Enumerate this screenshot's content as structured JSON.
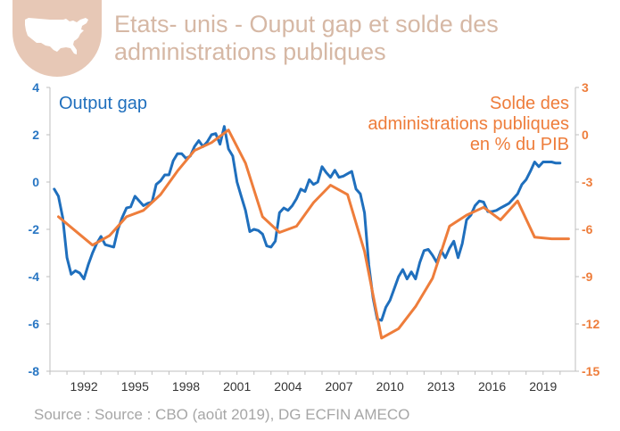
{
  "header": {
    "title_line1": "Etats- unis - Ouput gap et solde des",
    "title_line2": "administrations publiques",
    "badge_icon": "usa-map-icon"
  },
  "footer": {
    "source": "Source : Source : CBO (août 2019), DG ECFIN AMECO"
  },
  "colors": {
    "blue": "#1f6fbd",
    "orange": "#ee7d3b",
    "title": "#d6b8a5",
    "badge": "#e7c8b6"
  },
  "chart_data": {
    "type": "line",
    "title": "Etats- unis - Ouput gap et solde des administrations publiques",
    "xlim": [
      1990.0,
      2020.9
    ],
    "x_ticks": [
      1992,
      1995,
      1998,
      2001,
      2004,
      2007,
      2010,
      2013,
      2016,
      2019
    ],
    "y_left": {
      "lim": [
        -8,
        4
      ],
      "ticks": [
        -8,
        -6,
        -4,
        -2,
        0,
        2,
        4
      ]
    },
    "y_right": {
      "lim": [
        -15,
        3
      ],
      "ticks": [
        -15,
        -12,
        -9,
        -6,
        -3,
        0,
        3
      ]
    },
    "series": [
      {
        "name": "Output gap",
        "label_lines": [
          "Output gap"
        ],
        "axis": "left",
        "color": "#1f6fbd",
        "points": [
          [
            1990.25,
            -0.3
          ],
          [
            1990.5,
            -0.6
          ],
          [
            1990.75,
            -1.5
          ],
          [
            1991.0,
            -3.2
          ],
          [
            1991.25,
            -3.9
          ],
          [
            1991.5,
            -3.75
          ],
          [
            1991.75,
            -3.85
          ],
          [
            1992.0,
            -4.1
          ],
          [
            1992.25,
            -3.5
          ],
          [
            1992.5,
            -3.0
          ],
          [
            1992.75,
            -2.6
          ],
          [
            1993.0,
            -2.3
          ],
          [
            1993.25,
            -2.65
          ],
          [
            1993.5,
            -2.7
          ],
          [
            1993.75,
            -2.75
          ],
          [
            1994.0,
            -2.0
          ],
          [
            1994.25,
            -1.5
          ],
          [
            1994.5,
            -1.1
          ],
          [
            1994.75,
            -1.05
          ],
          [
            1995.0,
            -0.6
          ],
          [
            1995.25,
            -0.8
          ],
          [
            1995.5,
            -1.0
          ],
          [
            1995.75,
            -0.9
          ],
          [
            1996.0,
            -0.85
          ],
          [
            1996.25,
            -0.1
          ],
          [
            1996.5,
            0.05
          ],
          [
            1996.75,
            0.3
          ],
          [
            1997.0,
            0.3
          ],
          [
            1997.25,
            0.9
          ],
          [
            1997.5,
            1.2
          ],
          [
            1997.75,
            1.2
          ],
          [
            1998.0,
            1.0
          ],
          [
            1998.25,
            1.1
          ],
          [
            1998.5,
            1.5
          ],
          [
            1998.75,
            1.75
          ],
          [
            1999.0,
            1.5
          ],
          [
            1999.25,
            1.7
          ],
          [
            1999.5,
            2.0
          ],
          [
            1999.75,
            2.05
          ],
          [
            2000.0,
            1.6
          ],
          [
            2000.25,
            2.35
          ],
          [
            2000.5,
            1.4
          ],
          [
            2000.75,
            1.1
          ],
          [
            2001.0,
            0.0
          ],
          [
            2001.25,
            -0.6
          ],
          [
            2001.5,
            -1.2
          ],
          [
            2001.75,
            -2.1
          ],
          [
            2002.0,
            -2.0
          ],
          [
            2002.25,
            -2.05
          ],
          [
            2002.5,
            -2.2
          ],
          [
            2002.75,
            -2.7
          ],
          [
            2003.0,
            -2.75
          ],
          [
            2003.25,
            -2.5
          ],
          [
            2003.5,
            -1.3
          ],
          [
            2003.75,
            -1.1
          ],
          [
            2004.0,
            -1.2
          ],
          [
            2004.25,
            -1.0
          ],
          [
            2004.5,
            -0.7
          ],
          [
            2004.75,
            -0.3
          ],
          [
            2005.0,
            -0.4
          ],
          [
            2005.25,
            0.1
          ],
          [
            2005.5,
            -0.1
          ],
          [
            2005.75,
            0.0
          ],
          [
            2006.0,
            0.65
          ],
          [
            2006.25,
            0.4
          ],
          [
            2006.5,
            0.2
          ],
          [
            2006.75,
            0.5
          ],
          [
            2007.0,
            0.2
          ],
          [
            2007.25,
            0.25
          ],
          [
            2007.5,
            0.35
          ],
          [
            2007.75,
            0.45
          ],
          [
            2008.0,
            -0.3
          ],
          [
            2008.25,
            -0.5
          ],
          [
            2008.5,
            -1.3
          ],
          [
            2008.75,
            -3.5
          ],
          [
            2009.0,
            -4.9
          ],
          [
            2009.25,
            -5.8
          ],
          [
            2009.5,
            -5.85
          ],
          [
            2009.75,
            -5.3
          ],
          [
            2010.0,
            -5.0
          ],
          [
            2010.25,
            -4.5
          ],
          [
            2010.5,
            -4.0
          ],
          [
            2010.75,
            -3.7
          ],
          [
            2011.0,
            -4.1
          ],
          [
            2011.25,
            -3.8
          ],
          [
            2011.5,
            -4.1
          ],
          [
            2011.75,
            -3.4
          ],
          [
            2012.0,
            -2.9
          ],
          [
            2012.25,
            -2.85
          ],
          [
            2012.5,
            -3.1
          ],
          [
            2012.75,
            -3.4
          ],
          [
            2013.0,
            -2.9
          ],
          [
            2013.25,
            -3.2
          ],
          [
            2013.5,
            -2.8
          ],
          [
            2013.75,
            -2.5
          ],
          [
            2014.0,
            -3.2
          ],
          [
            2014.25,
            -2.6
          ],
          [
            2014.5,
            -1.6
          ],
          [
            2014.75,
            -1.4
          ],
          [
            2015.0,
            -1.0
          ],
          [
            2015.25,
            -0.8
          ],
          [
            2015.5,
            -0.85
          ],
          [
            2015.75,
            -1.25
          ],
          [
            2016.0,
            -1.25
          ],
          [
            2016.25,
            -1.2
          ],
          [
            2016.5,
            -1.1
          ],
          [
            2016.75,
            -1.0
          ],
          [
            2017.0,
            -0.9
          ],
          [
            2017.25,
            -0.7
          ],
          [
            2017.5,
            -0.5
          ],
          [
            2017.75,
            -0.1
          ],
          [
            2018.0,
            0.1
          ],
          [
            2018.25,
            0.45
          ],
          [
            2018.5,
            0.85
          ],
          [
            2018.75,
            0.65
          ],
          [
            2019.0,
            0.85
          ],
          [
            2019.25,
            0.85
          ],
          [
            2019.5,
            0.85
          ],
          [
            2019.75,
            0.8
          ],
          [
            2020.0,
            0.8
          ]
        ]
      },
      {
        "name": "Solde des administrations publiques en % du PIB",
        "label_lines": [
          "Solde des",
          "administrations publiques",
          "en % du PIB"
        ],
        "axis": "right",
        "color": "#ee7d3b",
        "points": [
          [
            1990.5,
            -5.2
          ],
          [
            1991.5,
            -6.1
          ],
          [
            1992.5,
            -7.0
          ],
          [
            1993.5,
            -6.4
          ],
          [
            1994.5,
            -5.2
          ],
          [
            1995.5,
            -4.8
          ],
          [
            1996.5,
            -3.8
          ],
          [
            1997.5,
            -2.3
          ],
          [
            1998.5,
            -1.0
          ],
          [
            1999.5,
            -0.5
          ],
          [
            2000.5,
            0.3
          ],
          [
            2001.5,
            -1.8
          ],
          [
            2002.5,
            -5.2
          ],
          [
            2003.5,
            -6.2
          ],
          [
            2004.5,
            -5.8
          ],
          [
            2005.5,
            -4.3
          ],
          [
            2006.5,
            -3.2
          ],
          [
            2007.5,
            -3.8
          ],
          [
            2008.5,
            -7.4
          ],
          [
            2009.5,
            -12.9
          ],
          [
            2010.5,
            -12.3
          ],
          [
            2011.5,
            -10.9
          ],
          [
            2012.5,
            -9.1
          ],
          [
            2013.5,
            -5.8
          ],
          [
            2014.5,
            -5.1
          ],
          [
            2015.5,
            -4.6
          ],
          [
            2016.5,
            -5.4
          ],
          [
            2017.5,
            -4.2
          ],
          [
            2018.5,
            -6.5
          ],
          [
            2019.5,
            -6.6
          ],
          [
            2020.5,
            -6.6
          ]
        ]
      }
    ],
    "legend": "inline labels: top-left (Output gap), top-right (Solde des administrations publiques en % du PIB)",
    "grid": false
  }
}
